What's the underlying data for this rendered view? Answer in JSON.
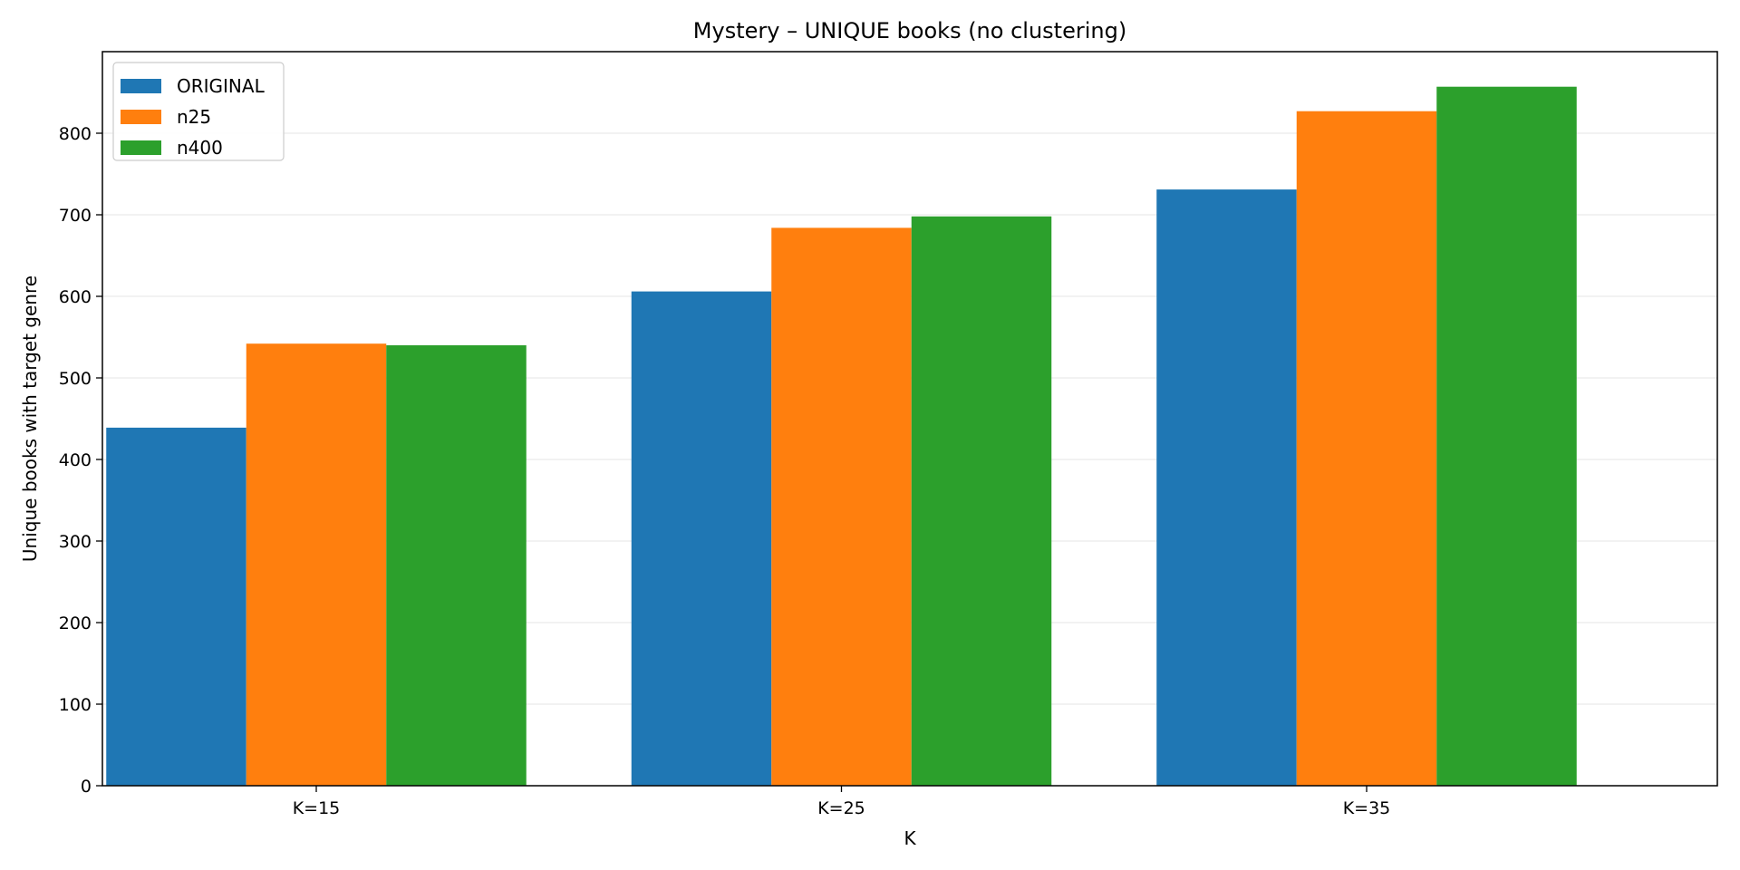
{
  "chart_data": {
    "type": "bar",
    "title": "Mystery – UNIQUE books (no clustering)",
    "xlabel": "K",
    "ylabel": "Unique books with target genre",
    "categories": [
      "K=15",
      "K=25",
      "K=35"
    ],
    "series": [
      {
        "name": "ORIGINAL",
        "color": "#1f77b4",
        "values": [
          439,
          606,
          731
        ]
      },
      {
        "name": "n25",
        "color": "#ff7f0e",
        "values": [
          542,
          684,
          827
        ]
      },
      {
        "name": "n400",
        "color": "#2ca02c",
        "values": [
          540,
          698,
          857
        ]
      }
    ],
    "ylim": [
      0,
      900
    ],
    "yticks": [
      0,
      100,
      200,
      300,
      400,
      500,
      600,
      700,
      800
    ],
    "grid": "horizontal",
    "legend_position": "top-left"
  }
}
